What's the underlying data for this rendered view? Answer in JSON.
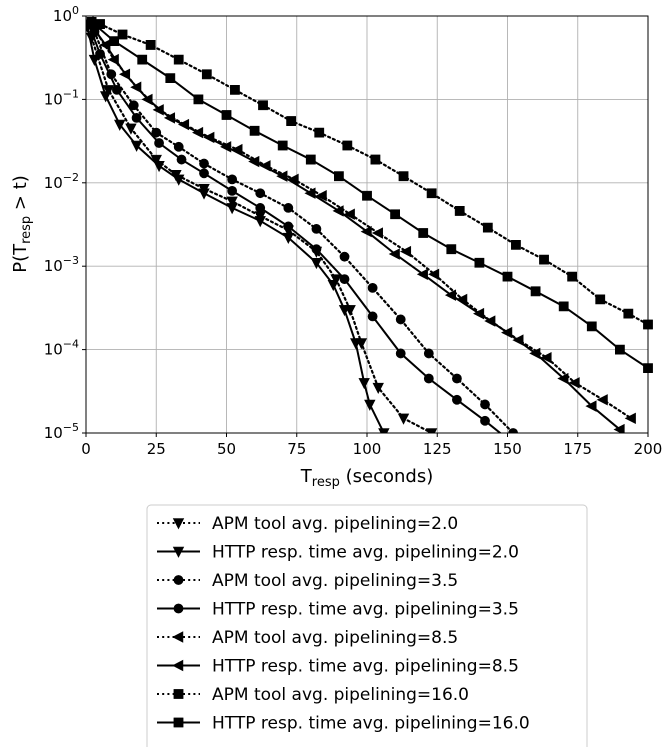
{
  "chart_data": {
    "type": "line",
    "xlabel": {
      "main": "T",
      "sub": "resp",
      "rest": " (seconds)"
    },
    "ylabel": {
      "main": "P(T",
      "sub": "resp",
      "rest": " > t)"
    },
    "xlim": [
      0,
      200
    ],
    "ylim": [
      1e-05,
      1
    ],
    "yscale": "log",
    "grid": true,
    "legend_position": "below",
    "x_ticks": [
      0,
      25,
      50,
      75,
      100,
      125,
      150,
      175,
      200
    ],
    "x_tick_labels": [
      "0",
      "25",
      "50",
      "75",
      "100",
      "125",
      "150",
      "175",
      "200"
    ],
    "y_ticks": [
      1,
      0.1,
      0.01,
      0.001,
      0.0001,
      1e-05
    ],
    "y_tick_labels": [
      {
        "base": "10",
        "exp": "0"
      },
      {
        "base": "10",
        "exp": "−1"
      },
      {
        "base": "10",
        "exp": "−2"
      },
      {
        "base": "10",
        "exp": "−3"
      },
      {
        "base": "10",
        "exp": "−4"
      },
      {
        "base": "10",
        "exp": "−5"
      }
    ],
    "series": [
      {
        "name": "APM tool avg. pipelining=2.0",
        "style": "dotted",
        "marker": "triangle-down",
        "x": [
          2,
          8,
          16,
          25,
          32,
          42,
          52,
          62,
          72,
          82,
          89,
          94,
          98,
          104,
          113,
          123
        ],
        "y": [
          0.55,
          0.13,
          0.045,
          0.019,
          0.0125,
          0.0085,
          0.006,
          0.004,
          0.0027,
          0.0015,
          0.0007,
          0.0003,
          0.00012,
          3.5e-05,
          1.5e-05,
          1e-05
        ]
      },
      {
        "name": "HTTP resp. time avg. pipelining=2.0",
        "style": "solid",
        "marker": "triangle-down",
        "x": [
          0.5,
          3,
          7,
          12,
          18,
          26,
          33,
          42,
          52,
          62,
          72,
          82,
          88,
          92,
          96,
          99,
          101,
          106,
          112
        ],
        "y": [
          0.75,
          0.3,
          0.11,
          0.05,
          0.028,
          0.016,
          0.011,
          0.0075,
          0.005,
          0.0035,
          0.0022,
          0.0011,
          0.0006,
          0.0003,
          0.00012,
          4e-05,
          2.2e-05,
          1e-05,
          7.2e-06
        ]
      },
      {
        "name": "APM tool avg. pipelining=3.5",
        "style": "dotted",
        "marker": "circle",
        "x": [
          3,
          9,
          17,
          25,
          33,
          42,
          52,
          62,
          72,
          82,
          92,
          102,
          112,
          122,
          132,
          142,
          152
        ],
        "y": [
          0.65,
          0.2,
          0.085,
          0.04,
          0.027,
          0.017,
          0.011,
          0.0075,
          0.005,
          0.0028,
          0.0013,
          0.00055,
          0.00023,
          9e-05,
          4.5e-05,
          2.2e-05,
          1e-05
        ]
      },
      {
        "name": "HTTP resp. time avg. pipelining=3.5",
        "style": "solid",
        "marker": "circle",
        "x": [
          1,
          5,
          11,
          18,
          26,
          34,
          42,
          52,
          62,
          72,
          82,
          92,
          102,
          112,
          122,
          132,
          142,
          150
        ],
        "y": [
          0.8,
          0.35,
          0.13,
          0.06,
          0.03,
          0.019,
          0.013,
          0.008,
          0.005,
          0.003,
          0.0016,
          0.0007,
          0.00025,
          9e-05,
          4.5e-05,
          2.5e-05,
          1.4e-05,
          8.5e-06
        ]
      },
      {
        "name": "APM tool avg. pipelining=8.5",
        "style": "dotted",
        "marker": "triangle-left",
        "x": [
          3,
          10,
          18,
          26,
          35,
          44,
          54,
          64,
          74,
          84,
          94,
          104,
          114,
          124,
          134,
          144,
          154,
          164,
          174,
          184,
          194
        ],
        "y": [
          0.7,
          0.3,
          0.14,
          0.075,
          0.05,
          0.035,
          0.025,
          0.016,
          0.011,
          0.007,
          0.0042,
          0.0025,
          0.0015,
          0.0008,
          0.0004,
          0.00022,
          0.00013,
          8e-05,
          4e-05,
          2.5e-05,
          1.5e-05
        ]
      },
      {
        "name": "HTTP resp. time avg. pipelining=8.5",
        "style": "solid",
        "marker": "triangle-left",
        "x": [
          1,
          7,
          14,
          22,
          30,
          40,
          50,
          60,
          70,
          80,
          90,
          100,
          110,
          120,
          130,
          140,
          150,
          160,
          170,
          180,
          190
        ],
        "y": [
          0.85,
          0.45,
          0.2,
          0.1,
          0.06,
          0.04,
          0.027,
          0.018,
          0.012,
          0.0075,
          0.0046,
          0.0026,
          0.0014,
          0.0008,
          0.00045,
          0.00027,
          0.00016,
          9e-05,
          4.5e-05,
          2.1e-05,
          1.1e-05
        ]
      },
      {
        "name": "APM tool avg. pipelining=16.0",
        "style": "dotted",
        "marker": "square",
        "x": [
          5,
          13,
          23,
          33,
          43,
          53,
          63,
          73,
          83,
          93,
          103,
          113,
          123,
          133,
          143,
          153,
          163,
          173,
          183,
          193,
          200
        ],
        "y": [
          0.8,
          0.6,
          0.45,
          0.3,
          0.2,
          0.13,
          0.085,
          0.055,
          0.04,
          0.028,
          0.019,
          0.012,
          0.0075,
          0.0046,
          0.0029,
          0.0018,
          0.0012,
          0.00075,
          0.0004,
          0.00027,
          0.0002
        ]
      },
      {
        "name": "HTTP resp. time avg. pipelining=16.0",
        "style": "solid",
        "marker": "square",
        "x": [
          2,
          10,
          20,
          30,
          40,
          50,
          60,
          70,
          80,
          90,
          100,
          110,
          120,
          130,
          140,
          150,
          160,
          170,
          180,
          190,
          200
        ],
        "y": [
          0.85,
          0.5,
          0.3,
          0.18,
          0.1,
          0.065,
          0.042,
          0.028,
          0.019,
          0.012,
          0.007,
          0.0042,
          0.0025,
          0.0016,
          0.0011,
          0.00075,
          0.0005,
          0.00033,
          0.00019,
          0.0001,
          6e-05
        ]
      }
    ]
  }
}
